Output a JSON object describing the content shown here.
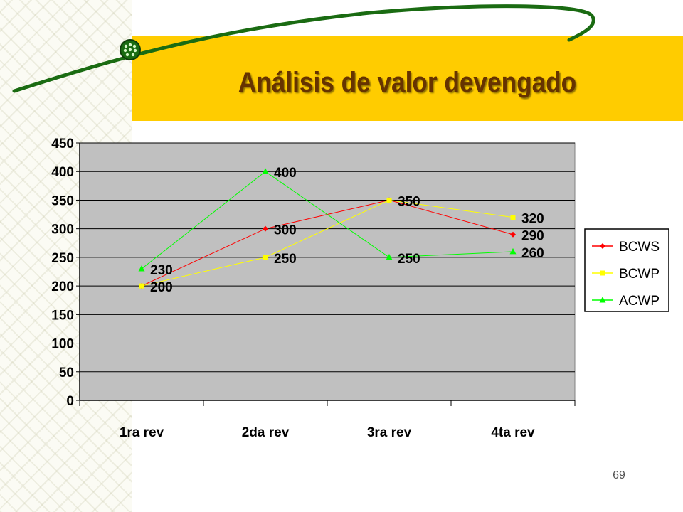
{
  "slide": {
    "title": "Análisis de valor devengado",
    "page_number": "69"
  },
  "colors": {
    "band": "#ffcc00",
    "title_text": "#663300",
    "swoosh": "#1a6b12",
    "plot_background": "#c0c0c0"
  },
  "chart_data": {
    "type": "line",
    "title": "",
    "xlabel": "",
    "ylabel": "",
    "categories": [
      "1ra rev",
      "2da rev",
      "3ra rev",
      "4ta rev"
    ],
    "ylim": [
      0,
      450
    ],
    "yticks": [
      0,
      50,
      100,
      150,
      200,
      250,
      300,
      350,
      400,
      450
    ],
    "grid": true,
    "legend": "right",
    "series": [
      {
        "name": "BCWS",
        "values": [
          200,
          300,
          350,
          290
        ],
        "color": "#ff0000",
        "marker": "diamond"
      },
      {
        "name": "BCWP",
        "values": [
          200,
          250,
          350,
          320
        ],
        "color": "#ffff00",
        "marker": "square"
      },
      {
        "name": "ACWP",
        "values": [
          230,
          400,
          250,
          260
        ],
        "color": "#00ff00",
        "marker": "triangle"
      }
    ],
    "data_labels": [
      {
        "category": "1ra rev",
        "value": 230
      },
      {
        "category": "1ra rev",
        "value": 200
      },
      {
        "category": "2da rev",
        "value": 400
      },
      {
        "category": "2da rev",
        "value": 300
      },
      {
        "category": "2da rev",
        "value": 250
      },
      {
        "category": "3ra rev",
        "value": 350
      },
      {
        "category": "3ra rev",
        "value": 250
      },
      {
        "category": "4ta rev",
        "value": 320
      },
      {
        "category": "4ta rev",
        "value": 290
      },
      {
        "category": "4ta rev",
        "value": 260
      }
    ]
  }
}
